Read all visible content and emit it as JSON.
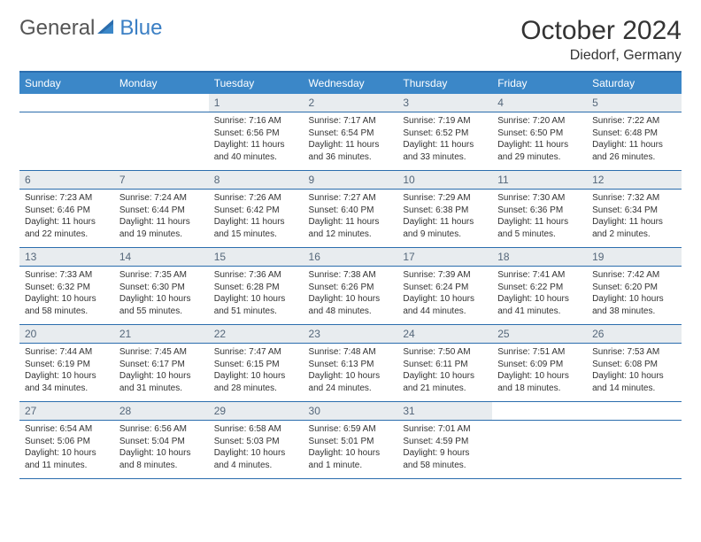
{
  "brand": {
    "part1": "General",
    "part2": "Blue"
  },
  "title": "October 2024",
  "location": "Diedorf, Germany",
  "colors": {
    "header_bg": "#3b87c8",
    "border": "#2b6dad",
    "daynum_bg": "#e8ecef",
    "daynum_color": "#55677a",
    "text": "#333333",
    "brand_blue": "#3b7fc4"
  },
  "day_headers": [
    "Sunday",
    "Monday",
    "Tuesday",
    "Wednesday",
    "Thursday",
    "Friday",
    "Saturday"
  ],
  "weeks": [
    [
      null,
      null,
      {
        "n": "1",
        "sr": "Sunrise: 7:16 AM",
        "ss": "Sunset: 6:56 PM",
        "dl1": "Daylight: 11 hours",
        "dl2": "and 40 minutes."
      },
      {
        "n": "2",
        "sr": "Sunrise: 7:17 AM",
        "ss": "Sunset: 6:54 PM",
        "dl1": "Daylight: 11 hours",
        "dl2": "and 36 minutes."
      },
      {
        "n": "3",
        "sr": "Sunrise: 7:19 AM",
        "ss": "Sunset: 6:52 PM",
        "dl1": "Daylight: 11 hours",
        "dl2": "and 33 minutes."
      },
      {
        "n": "4",
        "sr": "Sunrise: 7:20 AM",
        "ss": "Sunset: 6:50 PM",
        "dl1": "Daylight: 11 hours",
        "dl2": "and 29 minutes."
      },
      {
        "n": "5",
        "sr": "Sunrise: 7:22 AM",
        "ss": "Sunset: 6:48 PM",
        "dl1": "Daylight: 11 hours",
        "dl2": "and 26 minutes."
      }
    ],
    [
      {
        "n": "6",
        "sr": "Sunrise: 7:23 AM",
        "ss": "Sunset: 6:46 PM",
        "dl1": "Daylight: 11 hours",
        "dl2": "and 22 minutes."
      },
      {
        "n": "7",
        "sr": "Sunrise: 7:24 AM",
        "ss": "Sunset: 6:44 PM",
        "dl1": "Daylight: 11 hours",
        "dl2": "and 19 minutes."
      },
      {
        "n": "8",
        "sr": "Sunrise: 7:26 AM",
        "ss": "Sunset: 6:42 PM",
        "dl1": "Daylight: 11 hours",
        "dl2": "and 15 minutes."
      },
      {
        "n": "9",
        "sr": "Sunrise: 7:27 AM",
        "ss": "Sunset: 6:40 PM",
        "dl1": "Daylight: 11 hours",
        "dl2": "and 12 minutes."
      },
      {
        "n": "10",
        "sr": "Sunrise: 7:29 AM",
        "ss": "Sunset: 6:38 PM",
        "dl1": "Daylight: 11 hours",
        "dl2": "and 9 minutes."
      },
      {
        "n": "11",
        "sr": "Sunrise: 7:30 AM",
        "ss": "Sunset: 6:36 PM",
        "dl1": "Daylight: 11 hours",
        "dl2": "and 5 minutes."
      },
      {
        "n": "12",
        "sr": "Sunrise: 7:32 AM",
        "ss": "Sunset: 6:34 PM",
        "dl1": "Daylight: 11 hours",
        "dl2": "and 2 minutes."
      }
    ],
    [
      {
        "n": "13",
        "sr": "Sunrise: 7:33 AM",
        "ss": "Sunset: 6:32 PM",
        "dl1": "Daylight: 10 hours",
        "dl2": "and 58 minutes."
      },
      {
        "n": "14",
        "sr": "Sunrise: 7:35 AM",
        "ss": "Sunset: 6:30 PM",
        "dl1": "Daylight: 10 hours",
        "dl2": "and 55 minutes."
      },
      {
        "n": "15",
        "sr": "Sunrise: 7:36 AM",
        "ss": "Sunset: 6:28 PM",
        "dl1": "Daylight: 10 hours",
        "dl2": "and 51 minutes."
      },
      {
        "n": "16",
        "sr": "Sunrise: 7:38 AM",
        "ss": "Sunset: 6:26 PM",
        "dl1": "Daylight: 10 hours",
        "dl2": "and 48 minutes."
      },
      {
        "n": "17",
        "sr": "Sunrise: 7:39 AM",
        "ss": "Sunset: 6:24 PM",
        "dl1": "Daylight: 10 hours",
        "dl2": "and 44 minutes."
      },
      {
        "n": "18",
        "sr": "Sunrise: 7:41 AM",
        "ss": "Sunset: 6:22 PM",
        "dl1": "Daylight: 10 hours",
        "dl2": "and 41 minutes."
      },
      {
        "n": "19",
        "sr": "Sunrise: 7:42 AM",
        "ss": "Sunset: 6:20 PM",
        "dl1": "Daylight: 10 hours",
        "dl2": "and 38 minutes."
      }
    ],
    [
      {
        "n": "20",
        "sr": "Sunrise: 7:44 AM",
        "ss": "Sunset: 6:19 PM",
        "dl1": "Daylight: 10 hours",
        "dl2": "and 34 minutes."
      },
      {
        "n": "21",
        "sr": "Sunrise: 7:45 AM",
        "ss": "Sunset: 6:17 PM",
        "dl1": "Daylight: 10 hours",
        "dl2": "and 31 minutes."
      },
      {
        "n": "22",
        "sr": "Sunrise: 7:47 AM",
        "ss": "Sunset: 6:15 PM",
        "dl1": "Daylight: 10 hours",
        "dl2": "and 28 minutes."
      },
      {
        "n": "23",
        "sr": "Sunrise: 7:48 AM",
        "ss": "Sunset: 6:13 PM",
        "dl1": "Daylight: 10 hours",
        "dl2": "and 24 minutes."
      },
      {
        "n": "24",
        "sr": "Sunrise: 7:50 AM",
        "ss": "Sunset: 6:11 PM",
        "dl1": "Daylight: 10 hours",
        "dl2": "and 21 minutes."
      },
      {
        "n": "25",
        "sr": "Sunrise: 7:51 AM",
        "ss": "Sunset: 6:09 PM",
        "dl1": "Daylight: 10 hours",
        "dl2": "and 18 minutes."
      },
      {
        "n": "26",
        "sr": "Sunrise: 7:53 AM",
        "ss": "Sunset: 6:08 PM",
        "dl1": "Daylight: 10 hours",
        "dl2": "and 14 minutes."
      }
    ],
    [
      {
        "n": "27",
        "sr": "Sunrise: 6:54 AM",
        "ss": "Sunset: 5:06 PM",
        "dl1": "Daylight: 10 hours",
        "dl2": "and 11 minutes."
      },
      {
        "n": "28",
        "sr": "Sunrise: 6:56 AM",
        "ss": "Sunset: 5:04 PM",
        "dl1": "Daylight: 10 hours",
        "dl2": "and 8 minutes."
      },
      {
        "n": "29",
        "sr": "Sunrise: 6:58 AM",
        "ss": "Sunset: 5:03 PM",
        "dl1": "Daylight: 10 hours",
        "dl2": "and 4 minutes."
      },
      {
        "n": "30",
        "sr": "Sunrise: 6:59 AM",
        "ss": "Sunset: 5:01 PM",
        "dl1": "Daylight: 10 hours",
        "dl2": "and 1 minute."
      },
      {
        "n": "31",
        "sr": "Sunrise: 7:01 AM",
        "ss": "Sunset: 4:59 PM",
        "dl1": "Daylight: 9 hours",
        "dl2": "and 58 minutes."
      },
      null,
      null
    ]
  ]
}
